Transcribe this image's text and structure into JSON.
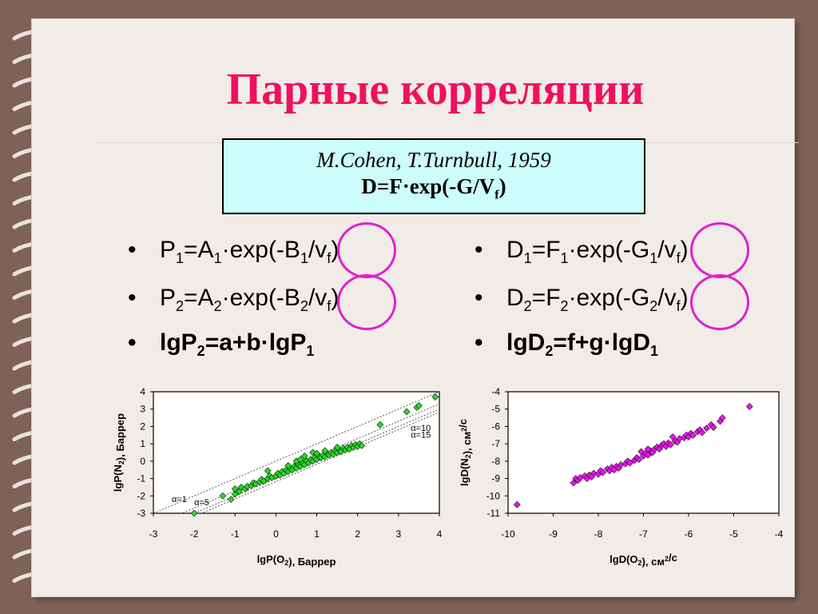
{
  "slide": {
    "title": "Парные корреляции",
    "reference": {
      "authors": "M.Cohen, T.Turnbull, 1959",
      "eq_prefix": "D=F·exp(-G/V",
      "eq_sub": "f",
      "eq_suffix": ")"
    },
    "left_bullets": [
      {
        "bullet": "•",
        "p1": "P",
        "s1": "1",
        "p2": "=A",
        "s2": "1",
        "p3": "·exp(-B",
        "s3": "1",
        "p4": "/v",
        "s4": "f",
        "p5": ")"
      },
      {
        "bullet": "•",
        "p1": "P",
        "s1": "2",
        "p2": "=A",
        "s2": "2",
        "p3": "·exp(-B",
        "s3": "2",
        "p4": "/v",
        "s4": "f",
        "p5": ")"
      },
      {
        "bullet": "•",
        "p1": "lgP",
        "s1": "2",
        "p2": "=a+b·lgP",
        "s2": "1"
      }
    ],
    "right_bullets": [
      {
        "bullet": "•",
        "p1": "D",
        "s1": "1",
        "p2": "=F",
        "s2": "1",
        "p3": "·exp(-G",
        "s3": "1",
        "p4": "/v",
        "s4": "f",
        "p5": ")"
      },
      {
        "bullet": "•",
        "p1": "D",
        "s1": "2",
        "p2": "=F",
        "s2": "2",
        "p3": "·exp(-G",
        "s3": "2",
        "p4": "/v",
        "s4": "f",
        "p5": ")"
      },
      {
        "bullet": "•",
        "p1": "lgD",
        "s1": "2",
        "p2": "=f+g·lgD",
        "s2": "1"
      }
    ],
    "colors": {
      "title": "#f01060",
      "box_fill": "#ccfcfc",
      "highlight": "#e020d0",
      "green": "#22dd22",
      "magenta": "#ee11ee",
      "frame": "#7e6257"
    }
  },
  "chart_data": [
    {
      "type": "scatter",
      "xlabel": "lgP(O2), Баррер",
      "ylabel": "lgP(N2), Баррер",
      "xlim": [
        -3,
        4
      ],
      "ylim": [
        -3,
        4
      ],
      "xticks": [
        "-3",
        "-2",
        "-1",
        "0",
        "1",
        "2",
        "3",
        "4"
      ],
      "yticks": [
        "-3",
        "-2",
        "-1",
        "0",
        "1",
        "2",
        "3",
        "4"
      ],
      "marker_color": "#22dd22",
      "reference_lines": [
        {
          "label": "α=1",
          "offset": 0
        },
        {
          "label": "α=5",
          "offset": -0.7
        },
        {
          "label": "α=10",
          "offset": -1.0
        },
        {
          "label": "α=15",
          "offset": -1.18
        }
      ],
      "points": [
        [
          -2.0,
          -3.0
        ],
        [
          -1.3,
          -2.0
        ],
        [
          -1.1,
          -2.2
        ],
        [
          -1.0,
          -1.9
        ],
        [
          -1.0,
          -1.6
        ],
        [
          -0.9,
          -1.75
        ],
        [
          -0.85,
          -1.5
        ],
        [
          -0.75,
          -1.6
        ],
        [
          -0.7,
          -1.45
        ],
        [
          -0.6,
          -1.4
        ],
        [
          -0.55,
          -1.25
        ],
        [
          -0.5,
          -1.3
        ],
        [
          -0.4,
          -1.2
        ],
        [
          -0.35,
          -1.05
        ],
        [
          -0.3,
          -1.15
        ],
        [
          -0.2,
          -1.0
        ],
        [
          -0.15,
          -0.85
        ],
        [
          -0.1,
          -0.95
        ],
        [
          0.0,
          -0.85
        ],
        [
          0.05,
          -0.7
        ],
        [
          0.1,
          -0.8
        ],
        [
          0.15,
          -0.6
        ],
        [
          0.2,
          -0.7
        ],
        [
          0.25,
          -0.5
        ],
        [
          0.3,
          -0.6
        ],
        [
          0.35,
          -0.4
        ],
        [
          0.4,
          -0.5
        ],
        [
          0.45,
          -0.3
        ],
        [
          0.5,
          -0.4
        ],
        [
          0.55,
          -0.2
        ],
        [
          0.6,
          -0.3
        ],
        [
          0.65,
          -0.1
        ],
        [
          0.7,
          -0.2
        ],
        [
          0.75,
          0.0
        ],
        [
          0.8,
          -0.1
        ],
        [
          0.85,
          0.1
        ],
        [
          0.9,
          0.0
        ],
        [
          0.95,
          0.2
        ],
        [
          1.0,
          0.1
        ],
        [
          1.05,
          0.3
        ],
        [
          1.1,
          0.2
        ],
        [
          1.15,
          0.35
        ],
        [
          1.2,
          0.25
        ],
        [
          1.25,
          0.45
        ],
        [
          1.3,
          0.35
        ],
        [
          1.35,
          0.5
        ],
        [
          1.4,
          0.4
        ],
        [
          1.45,
          0.6
        ],
        [
          1.5,
          0.5
        ],
        [
          1.55,
          0.65
        ],
        [
          1.6,
          0.55
        ],
        [
          1.65,
          0.75
        ],
        [
          1.7,
          0.65
        ],
        [
          1.75,
          0.8
        ],
        [
          1.8,
          0.7
        ],
        [
          1.85,
          0.9
        ],
        [
          1.9,
          0.8
        ],
        [
          1.95,
          0.95
        ],
        [
          2.0,
          0.85
        ],
        [
          2.05,
          1.0
        ],
        [
          2.1,
          0.9
        ],
        [
          0.5,
          0.0
        ],
        [
          0.7,
          0.3
        ],
        [
          0.9,
          0.5
        ],
        [
          1.2,
          0.6
        ],
        [
          1.5,
          0.8
        ],
        [
          -0.2,
          -0.55
        ],
        [
          0.3,
          -0.25
        ],
        [
          0.6,
          0.1
        ],
        [
          1.0,
          0.45
        ],
        [
          2.55,
          2.1
        ],
        [
          3.2,
          2.85
        ],
        [
          3.45,
          3.1
        ],
        [
          3.5,
          3.2
        ],
        [
          3.9,
          3.7
        ]
      ]
    },
    {
      "type": "scatter",
      "xlabel": "lgD(O2), см2/с",
      "ylabel": "lgD(N2), см2/с",
      "xlim": [
        -10,
        -4
      ],
      "ylim": [
        -11,
        -4
      ],
      "xticks": [
        "-10",
        "-9",
        "-8",
        "-7",
        "-6",
        "-5",
        "-4"
      ],
      "yticks": [
        "-11",
        "-10",
        "-9",
        "-8",
        "-7",
        "-6",
        "-5",
        "-4"
      ],
      "marker_color": "#ee11ee",
      "points": [
        [
          -9.8,
          -10.5
        ],
        [
          -8.55,
          -9.25
        ],
        [
          -8.5,
          -9.0
        ],
        [
          -8.45,
          -9.1
        ],
        [
          -8.4,
          -8.95
        ],
        [
          -8.3,
          -8.85
        ],
        [
          -8.25,
          -9.0
        ],
        [
          -8.2,
          -8.8
        ],
        [
          -8.1,
          -8.7
        ],
        [
          -8.0,
          -8.75
        ],
        [
          -7.95,
          -8.55
        ],
        [
          -7.9,
          -8.65
        ],
        [
          -7.8,
          -8.45
        ],
        [
          -7.75,
          -8.55
        ],
        [
          -7.7,
          -8.35
        ],
        [
          -7.6,
          -8.3
        ],
        [
          -7.55,
          -8.4
        ],
        [
          -7.5,
          -8.2
        ],
        [
          -7.4,
          -8.15
        ],
        [
          -7.35,
          -8.0
        ],
        [
          -7.3,
          -8.1
        ],
        [
          -7.2,
          -7.95
        ],
        [
          -7.15,
          -7.8
        ],
        [
          -7.1,
          -7.9
        ],
        [
          -7.0,
          -7.7
        ],
        [
          -6.95,
          -7.55
        ],
        [
          -6.9,
          -7.65
        ],
        [
          -6.85,
          -7.4
        ],
        [
          -6.8,
          -7.5
        ],
        [
          -6.75,
          -7.3
        ],
        [
          -6.7,
          -7.2
        ],
        [
          -6.65,
          -7.3
        ],
        [
          -6.6,
          -7.1
        ],
        [
          -6.55,
          -7.0
        ],
        [
          -6.5,
          -7.15
        ],
        [
          -6.45,
          -6.95
        ],
        [
          -6.4,
          -7.05
        ],
        [
          -6.3,
          -6.85
        ],
        [
          -6.25,
          -6.9
        ],
        [
          -6.2,
          -6.7
        ],
        [
          -6.1,
          -6.65
        ],
        [
          -6.05,
          -6.5
        ],
        [
          -6.0,
          -6.6
        ],
        [
          -5.95,
          -6.4
        ],
        [
          -5.9,
          -6.5
        ],
        [
          -5.8,
          -6.3
        ],
        [
          -5.75,
          -6.2
        ],
        [
          -5.7,
          -6.35
        ],
        [
          -5.6,
          -6.1
        ],
        [
          -5.5,
          -5.9
        ],
        [
          -5.45,
          -6.05
        ],
        [
          -5.3,
          -5.7
        ],
        [
          -5.25,
          -5.5
        ],
        [
          -4.65,
          -4.85
        ],
        [
          -7.05,
          -7.45
        ],
        [
          -6.35,
          -6.6
        ],
        [
          -8.15,
          -8.9
        ],
        [
          -7.65,
          -8.5
        ],
        [
          -6.9,
          -7.3
        ]
      ]
    }
  ]
}
